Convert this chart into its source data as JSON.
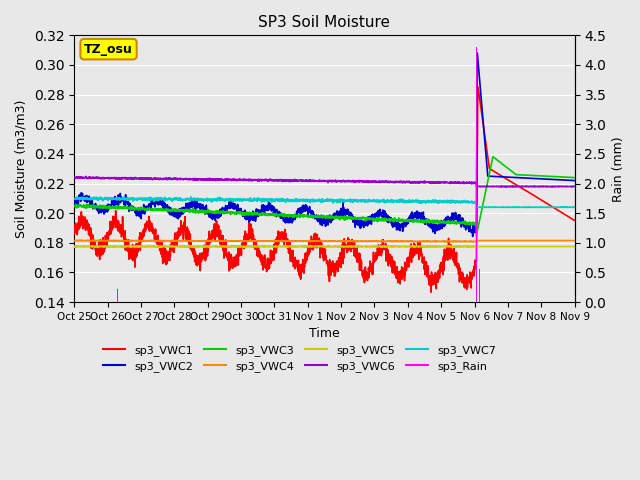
{
  "title": "SP3 Soil Moisture",
  "xlabel": "Time",
  "ylabel_left": "Soil Moisture (m3/m3)",
  "ylabel_right": "Rain (mm)",
  "ylim_left": [
    0.14,
    0.32
  ],
  "ylim_right": [
    0.0,
    4.5
  ],
  "background_color": "#e8e8e8",
  "plot_bg_color": "#e8e8e8",
  "annotation_label": "TZ_osu",
  "annotation_color": "#ffff00",
  "annotation_border": "#cc8800",
  "x_tick_labels": [
    "Oct 25",
    "Oct 26",
    "Oct 27",
    "Oct 28",
    "Oct 29",
    "Oct 30",
    "Oct 31",
    "Nov 1",
    "Nov 2",
    "Nov 3",
    "Nov 4",
    "Nov 5",
    "Nov 6",
    "Nov 7",
    "Nov 8",
    "Nov 9"
  ],
  "series": {
    "sp3_VWC1": {
      "color": "#ff0000",
      "lw": 1.2
    },
    "sp3_VWC2": {
      "color": "#0000cc",
      "lw": 1.2
    },
    "sp3_VWC3": {
      "color": "#00cc00",
      "lw": 1.2
    },
    "sp3_VWC4": {
      "color": "#ff8800",
      "lw": 1.2
    },
    "sp3_VWC5": {
      "color": "#cccc00",
      "lw": 1.2
    },
    "sp3_VWC6": {
      "color": "#9900cc",
      "lw": 1.2
    },
    "sp3_VWC7": {
      "color": "#00cccc",
      "lw": 1.2
    },
    "sp3_Rain": {
      "color": "#ff00ff",
      "lw": 1.5
    }
  }
}
